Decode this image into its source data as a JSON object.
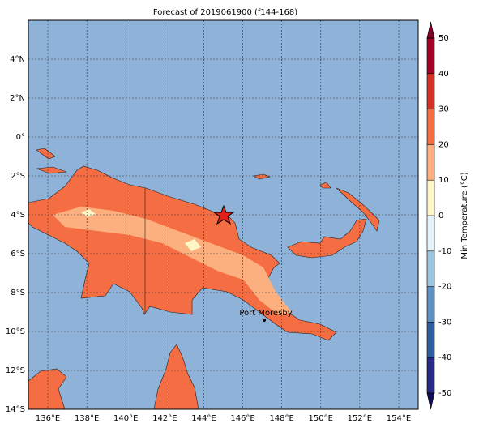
{
  "map": {
    "title": "Forecast of 2019061900 (f144-168)",
    "lonlim": [
      135,
      155
    ],
    "latlim": [
      -14,
      6
    ],
    "lon_ticks": [
      {
        "value": 136,
        "label": "136°E"
      },
      {
        "value": 138,
        "label": "138°E"
      },
      {
        "value": 140,
        "label": "140°E"
      },
      {
        "value": 142,
        "label": "142°E"
      },
      {
        "value": 144,
        "label": "144°E"
      },
      {
        "value": 146,
        "label": "146°E"
      },
      {
        "value": 148,
        "label": "148°E"
      },
      {
        "value": 150,
        "label": "150°E"
      },
      {
        "value": 152,
        "label": "152°E"
      },
      {
        "value": 154,
        "label": "154°E"
      }
    ],
    "lat_ticks": [
      {
        "value": 4,
        "label": "4°N"
      },
      {
        "value": 2,
        "label": "2°N"
      },
      {
        "value": 0,
        "label": "0°"
      },
      {
        "value": -2,
        "label": "2°S"
      },
      {
        "value": -4,
        "label": "4°S"
      },
      {
        "value": -6,
        "label": "6°S"
      },
      {
        "value": -8,
        "label": "8°S"
      },
      {
        "value": -10,
        "label": "10°S"
      },
      {
        "value": -12,
        "label": "12°S"
      },
      {
        "value": -14,
        "label": "14°S"
      }
    ],
    "city": "Port Moresby",
    "colorbar": {
      "label": "Min Temperature (°C)",
      "lim": [
        -50,
        50
      ],
      "ticks": [
        -50,
        -40,
        -30,
        -20,
        -10,
        0,
        10,
        20,
        30,
        40,
        50
      ],
      "colors": [
        "#262a85",
        "#2f5f9f",
        "#5a90c2",
        "#9cc6df",
        "#e4f3f8",
        "#fff6c8",
        "#fdb07f",
        "#f46d43",
        "#d73027",
        "#a50026"
      ],
      "extend_colors": [
        "#10105a",
        "#800026"
      ]
    }
  }
}
